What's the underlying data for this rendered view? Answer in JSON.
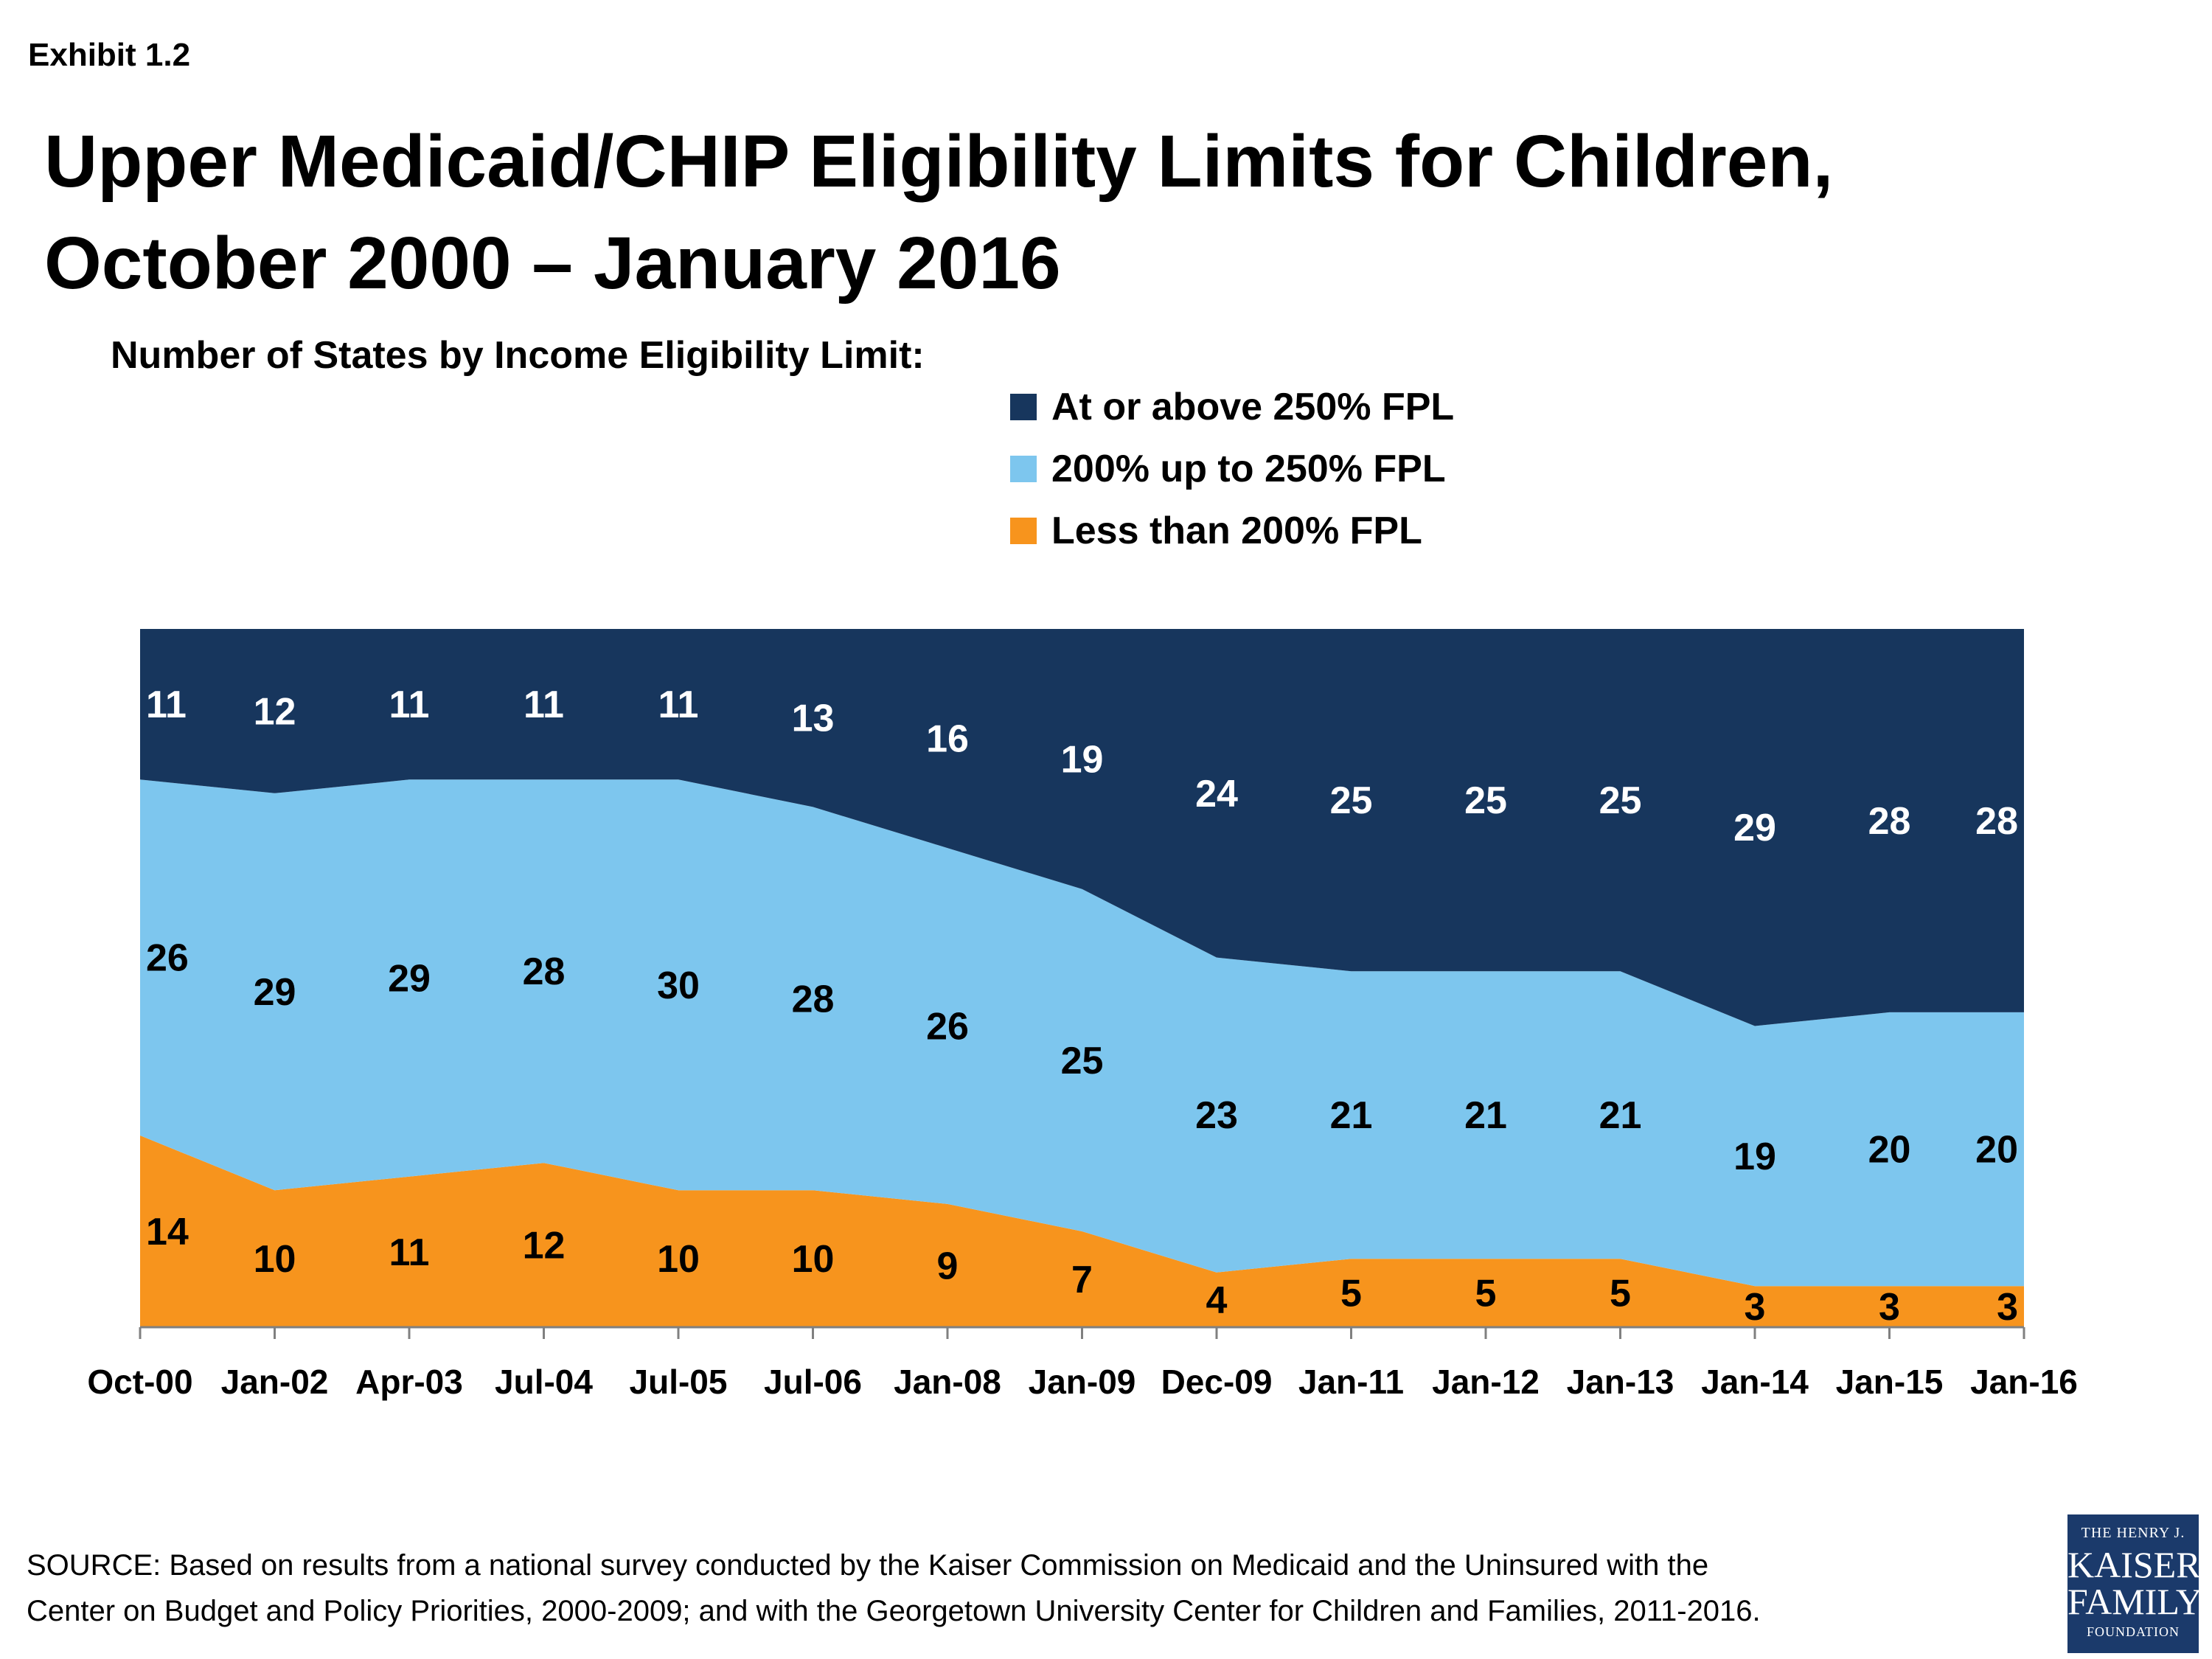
{
  "header": {
    "exhibit": "Exhibit 1.2",
    "title": "Upper Medicaid/CHIP Eligibility Limits for Children, October 2000 – January 2016",
    "subtitle": "Number of States by Income Eligibility Limit:"
  },
  "chart_data": {
    "type": "area",
    "stacked": true,
    "categories": [
      "Oct-00",
      "Jan-02",
      "Apr-03",
      "Jul-04",
      "Jul-05",
      "Jul-06",
      "Jan-08",
      "Jan-09",
      "Dec-09",
      "Jan-11",
      "Jan-12",
      "Jan-13",
      "Jan-14",
      "Jan-15",
      "Jan-16"
    ],
    "series": [
      {
        "name": "Less than 200% FPL",
        "color": "#f7941d",
        "label_color": "#000000",
        "values": [
          14,
          10,
          11,
          12,
          10,
          10,
          9,
          7,
          4,
          5,
          5,
          5,
          3,
          3,
          3
        ]
      },
      {
        "name": "200% up to 250% FPL",
        "color": "#7dc6ee",
        "label_color": "#000000",
        "values": [
          26,
          29,
          29,
          28,
          30,
          28,
          26,
          25,
          23,
          21,
          21,
          21,
          19,
          20,
          20
        ]
      },
      {
        "name": "At or above 250% FPL",
        "color": "#17365d",
        "label_color": "#ffffff",
        "values": [
          11,
          12,
          11,
          11,
          11,
          13,
          16,
          19,
          24,
          25,
          25,
          25,
          29,
          28,
          28
        ]
      }
    ],
    "ylim": [
      0,
      51
    ],
    "legend_position": "top-right",
    "grid": false
  },
  "legend": [
    {
      "label": "At or above 250% FPL",
      "color": "#17365d"
    },
    {
      "label": "200% up to 250% FPL",
      "color": "#7dc6ee"
    },
    {
      "label": "Less than 200% FPL",
      "color": "#f7941d"
    }
  ],
  "footer": {
    "source_line1": "SOURCE:  Based on results from a national survey conducted by the Kaiser Commission on Medicaid and the Uninsured with the",
    "source_line2": "Center on Budget and Policy Priorities, 2000-2009; and with the Georgetown University Center for Children and Families, 2011-2016.",
    "logo": {
      "line1": "THE HENRY J.",
      "line2": "KAISER",
      "line3": "FAMILY",
      "line4": "FOUNDATION"
    }
  }
}
